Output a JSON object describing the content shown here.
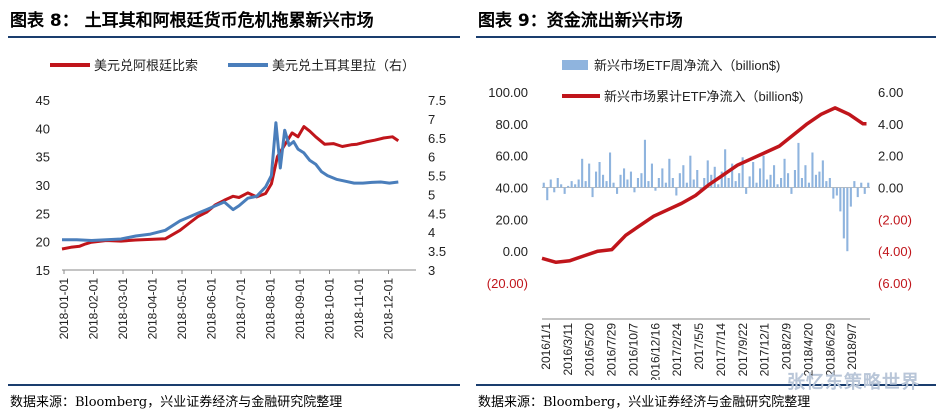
{
  "panels": {
    "left_title": "图表 8：  土耳其和阿根廷货币危机拖累新兴市场",
    "right_title": "图表 9：资金流出新兴市场",
    "left_source": "数据来源：Bloomberg，兴业证券经济与金融研究院整理",
    "right_source": "数据来源：Bloomberg，兴业证券经济与金融研究院整理",
    "watermark": "张忆东策略世界"
  },
  "colors": {
    "red": "#c0151b",
    "blue": "#4a7ebb",
    "bar": "#8fb4de",
    "rule": "#1a3d6e",
    "neg": "#c0151b"
  },
  "chart_data": [
    {
      "type": "line",
      "title": "",
      "legend_placement": "top",
      "x_ticks": [
        "2018-01-01",
        "2018-02-01",
        "2018-03-01",
        "2018-04-01",
        "2018-05-01",
        "2018-06-01",
        "2018-07-01",
        "2018-08-01",
        "2018-09-01",
        "2018-10-01",
        "2018-11-01",
        "2018-12-01"
      ],
      "y_left": {
        "min": 15,
        "max": 45,
        "ticks": [
          "15",
          "20",
          "25",
          "30",
          "35",
          "40",
          "45"
        ]
      },
      "y_right": {
        "min": 3,
        "max": 7.5,
        "ticks": [
          "3",
          "3.5",
          "4",
          "4.5",
          "5",
          "5.5",
          "6",
          "6.5",
          "7",
          "7.5"
        ]
      },
      "series": [
        {
          "name": "美元兑阿根廷比索",
          "axis": "left",
          "color": "#c0151b",
          "x": [
            0,
            0.3,
            0.6,
            0.8,
            1,
            1.5,
            2,
            2.5,
            3,
            3.5,
            4,
            4.3,
            4.6,
            4.9,
            5.2,
            5.5,
            5.8,
            6,
            6.3,
            6.6,
            6.9,
            7.1,
            7.3,
            7.6,
            7.8,
            8,
            8.2,
            8.4,
            8.6,
            8.9,
            9.2,
            9.5,
            9.8,
            10,
            10.3,
            10.6,
            10.9,
            11.2,
            11.4
          ],
          "values": [
            18.7,
            19.0,
            19.2,
            19.6,
            19.9,
            20.2,
            20.1,
            20.3,
            20.4,
            20.5,
            22,
            23.2,
            24.4,
            25.2,
            26.5,
            27.3,
            28,
            27.8,
            28.6,
            27.9,
            28.5,
            30.2,
            35,
            37.5,
            39.2,
            38.5,
            40.3,
            39.5,
            38.5,
            37.2,
            37.3,
            36.8,
            37.1,
            37.2,
            37.6,
            37.9,
            38.3,
            38.5,
            37.8
          ]
        },
        {
          "name": "美元兑土耳其里拉（右）",
          "axis": "right",
          "color": "#4a7ebb",
          "x": [
            0,
            0.5,
            1,
            1.5,
            2,
            2.5,
            3,
            3.5,
            4,
            4.3,
            4.6,
            4.9,
            5.2,
            5.5,
            5.8,
            6,
            6.3,
            6.6,
            6.9,
            7.1,
            7.25,
            7.4,
            7.55,
            7.7,
            7.85,
            8,
            8.2,
            8.4,
            8.6,
            8.8,
            9,
            9.3,
            9.6,
            9.9,
            10.2,
            10.5,
            10.8,
            11.1,
            11.4
          ],
          "values": [
            3.8,
            3.8,
            3.78,
            3.8,
            3.82,
            3.9,
            3.95,
            4.05,
            4.3,
            4.4,
            4.5,
            4.6,
            4.7,
            4.8,
            4.6,
            4.7,
            4.9,
            4.95,
            5.2,
            5.5,
            6.9,
            5.7,
            6.7,
            6.3,
            6.4,
            6.2,
            6.1,
            5.9,
            5.8,
            5.6,
            5.5,
            5.4,
            5.35,
            5.3,
            5.3,
            5.32,
            5.33,
            5.3,
            5.33
          ]
        }
      ]
    },
    {
      "type": "bar+line",
      "title": "",
      "legend_placement": "top",
      "x_ticks": [
        "2016/1/1",
        "2016/3/11",
        "2016/5/20",
        "2016/7/29",
        "2016/10/7",
        "2016/12/16",
        "2017/2/24",
        "2017/5/5",
        "2017/7/14",
        "2017/9/22",
        "2017/12/1",
        "2018/2/9",
        "2018/4/20",
        "2018/6/29",
        "2018/9/7"
      ],
      "y_left": {
        "min": -20,
        "max": 100,
        "ticks": [
          "(20.00)",
          "0.00",
          "20.00",
          "40.00",
          "60.00",
          "80.00",
          "100.00"
        ]
      },
      "y_right": {
        "min": -6,
        "max": 6,
        "ticks": [
          "(6.00)",
          "(4.00)",
          "(2.00)",
          "0.00",
          "2.00",
          "4.00",
          "6.00"
        ]
      },
      "series": [
        {
          "name": "新兴市场ETF周净流入（billion$)",
          "type": "bar",
          "axis": "right",
          "values": [
            0.3,
            -0.8,
            0.5,
            -0.3,
            0.6,
            0.2,
            -0.4,
            0.1,
            0.4,
            0.2,
            0.5,
            1.8,
            0.4,
            1.5,
            -0.6,
            1.0,
            1.6,
            0.8,
            0.4,
            2.2,
            0.3,
            -0.4,
            0.8,
            1.2,
            0.5,
            1.0,
            -0.3,
            0.6,
            0.9,
            3.0,
            0.4,
            1.5,
            -0.2,
            0.6,
            1.2,
            0.3,
            1.8,
            0.6,
            -0.5,
            0.9,
            1.4,
            0.3,
            2.0,
            0.5,
            1.1,
            -0.3,
            0.6,
            1.7,
            0.8,
            1.3,
            0.2,
            1.0,
            2.4,
            0.6,
            1.5,
            0.4,
            0.9,
            1.9,
            -0.4,
            0.7,
            1.6,
            0.3,
            1.2,
            2.0,
            0.5,
            0.8,
            1.4,
            0.2,
            0.6,
            1.8,
            0.9,
            -0.4,
            1.1,
            2.8,
            0.6,
            1.4,
            0.3,
            2.2,
            0.8,
            1.0,
            1.7,
            0.4,
            0.6,
            -0.7,
            -0.5,
            -1.5,
            -3.2,
            -4.0,
            -1.2,
            0.4,
            -0.6,
            0.3,
            -0.4,
            0.3
          ]
        },
        {
          "name": "新兴市场累计ETF净流入（billion$)",
          "type": "line",
          "axis": "left",
          "x": [
            0,
            4,
            8,
            12,
            16,
            20,
            24,
            28,
            32,
            36,
            40,
            44,
            48,
            52,
            56,
            60,
            64,
            68,
            72,
            76,
            80,
            84,
            88,
            92,
            93
          ],
          "values": [
            -4.5,
            -7,
            -6,
            -3,
            0,
            1,
            10,
            16,
            22,
            26,
            30,
            35,
            42,
            48,
            54,
            58,
            62,
            66,
            73,
            80,
            86,
            90,
            86,
            80,
            80
          ]
        }
      ]
    }
  ]
}
